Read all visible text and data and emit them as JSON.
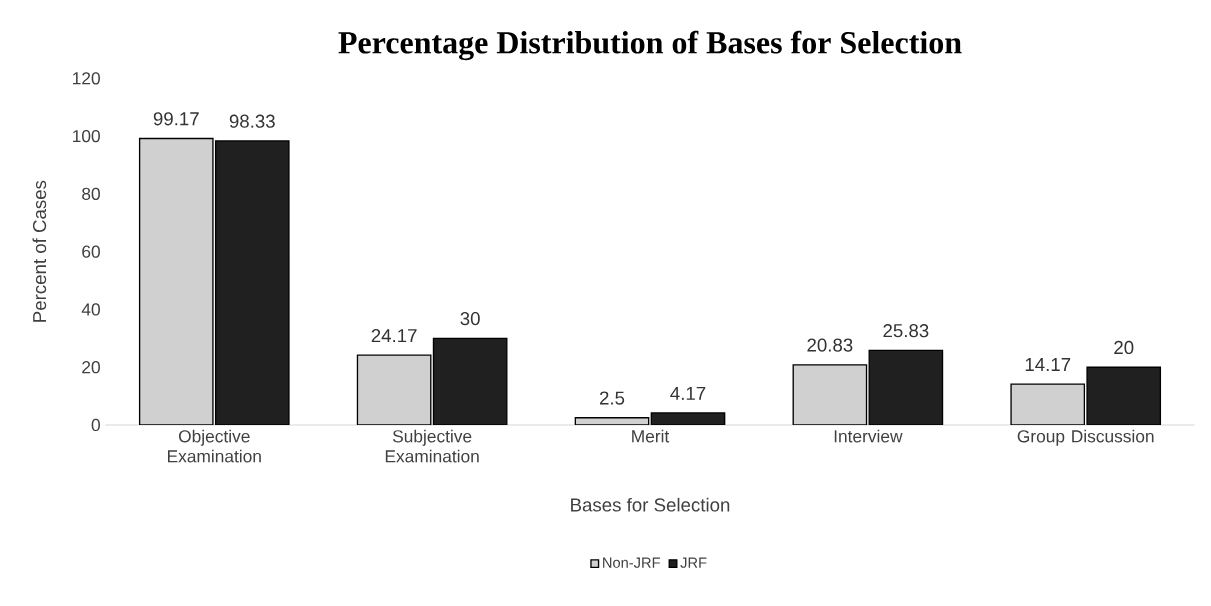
{
  "chart_data": {
    "type": "bar",
    "title": "Percentage Distribution of Bases for Selection",
    "xlabel": "Bases for Selection",
    "ylabel": "Percent of Cases",
    "categories": [
      "Objective Examination",
      "Subjective Examination",
      "Merit",
      "Interview",
      "Group Discussion"
    ],
    "series": [
      {
        "name": "Non-JRF",
        "color": "#d0d0d0",
        "values": [
          99.17,
          24.17,
          2.5,
          20.83,
          14.17
        ]
      },
      {
        "name": "JRF",
        "color": "#202020",
        "values": [
          98.33,
          30,
          4.17,
          25.83,
          20
        ]
      }
    ],
    "ylim": [
      0,
      120
    ],
    "yticks": [
      0,
      20,
      40,
      60,
      80,
      100,
      120
    ],
    "grid": false,
    "legend": "bottom",
    "data_labels": true
  }
}
